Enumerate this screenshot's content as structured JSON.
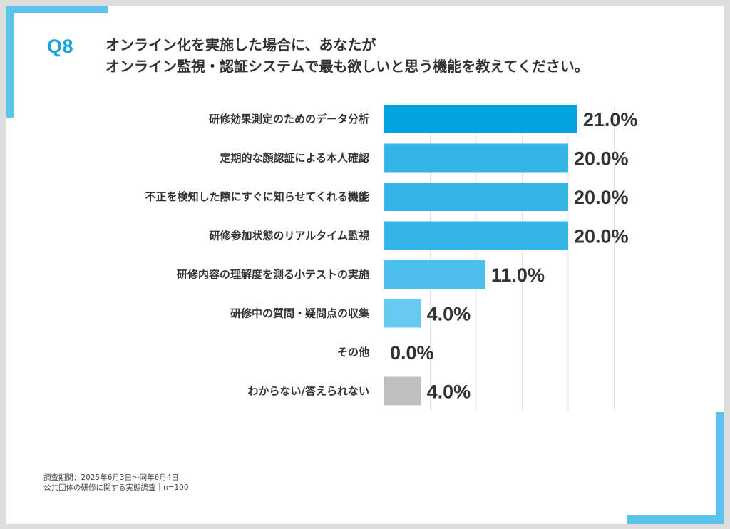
{
  "question_number": "Q8",
  "title_lines": [
    "オンライン化を実施した場合に、あなたが",
    "オンライン監視・認証システムで最も欲しいと思う機能を教えてください。"
  ],
  "chart_data": {
    "type": "bar",
    "orientation": "horizontal",
    "categories": [
      "研修効果測定のためのデータ分析",
      "定期的な顔認証による本人確認",
      "不正を検知した際にすぐに知らせてくれる機能",
      "研修参加状態のリアルタイム監視",
      "研修内容の理解度を測る小テストの実施",
      "研修中の質問・疑問点の収集",
      "その他",
      "わからない/答えられない"
    ],
    "values": [
      21.0,
      20.0,
      20.0,
      20.0,
      11.0,
      4.0,
      0.0,
      4.0
    ],
    "value_labels": [
      "21.0%",
      "20.0%",
      "20.0%",
      "20.0%",
      "11.0%",
      "4.0%",
      "0.0%",
      "4.0%"
    ],
    "bar_colors": [
      "#00a3e0",
      "#33b5e8",
      "#33b5e8",
      "#33b5e8",
      "#4dbfec",
      "#66c9ef",
      "#66c9ef",
      "#c0c0c0"
    ],
    "xlim": [
      0,
      25
    ],
    "grid": true
  },
  "footnotes": [
    "調査期間：2025年6月3日〜同年6月4日",
    "公共団体の研修に関する実態調査｜n=100"
  ]
}
